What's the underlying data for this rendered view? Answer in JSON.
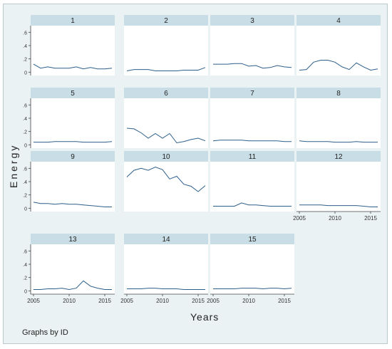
{
  "chart_data": {
    "type": "line",
    "ylabel": "Energy",
    "xlabel": "Years",
    "note": "Graphs by ID",
    "x": [
      2005,
      2006,
      2007,
      2008,
      2009,
      2010,
      2011,
      2012,
      2013,
      2014,
      2015,
      2016
    ],
    "xticks": [
      2005,
      2010,
      2015
    ],
    "yticks": [
      0,
      0.2,
      0.4,
      0.6
    ],
    "ylim": [
      -0.05,
      0.7
    ],
    "grid": false,
    "series": [
      {
        "name": "1",
        "values": [
          0.12,
          0.06,
          0.08,
          0.06,
          0.06,
          0.06,
          0.08,
          0.05,
          0.07,
          0.05,
          0.05,
          0.06
        ]
      },
      {
        "name": "2",
        "values": [
          0.02,
          0.04,
          0.04,
          0.04,
          0.02,
          0.02,
          0.02,
          0.02,
          0.03,
          0.03,
          0.03,
          0.07
        ]
      },
      {
        "name": "3",
        "values": [
          0.12,
          0.12,
          0.12,
          0.13,
          0.13,
          0.09,
          0.1,
          0.06,
          0.07,
          0.1,
          0.08,
          0.07
        ]
      },
      {
        "name": "4",
        "values": [
          0.03,
          0.04,
          0.15,
          0.18,
          0.18,
          0.15,
          0.08,
          0.04,
          0.14,
          0.08,
          0.03,
          0.05
        ]
      },
      {
        "name": "5",
        "values": [
          0.04,
          0.04,
          0.04,
          0.05,
          0.05,
          0.05,
          0.05,
          0.04,
          0.04,
          0.04,
          0.04,
          0.05
        ]
      },
      {
        "name": "6",
        "values": [
          0.25,
          0.24,
          0.18,
          0.1,
          0.17,
          0.1,
          0.17,
          0.03,
          0.05,
          0.08,
          0.1,
          0.06
        ]
      },
      {
        "name": "7",
        "values": [
          0.06,
          0.07,
          0.07,
          0.07,
          0.07,
          0.06,
          0.06,
          0.06,
          0.06,
          0.06,
          0.05,
          0.05
        ]
      },
      {
        "name": "8",
        "values": [
          0.06,
          0.05,
          0.05,
          0.05,
          0.05,
          0.04,
          0.04,
          0.04,
          0.05,
          0.04,
          0.04,
          0.04
        ]
      },
      {
        "name": "9",
        "values": [
          0.09,
          0.07,
          0.07,
          0.06,
          0.07,
          0.06,
          0.06,
          0.05,
          0.04,
          0.03,
          0.02,
          0.02
        ]
      },
      {
        "name": "10",
        "values": [
          0.47,
          0.57,
          0.6,
          0.57,
          0.62,
          0.58,
          0.44,
          0.48,
          0.36,
          0.33,
          0.25,
          0.34
        ]
      },
      {
        "name": "11",
        "values": [
          0.03,
          0.03,
          0.03,
          0.03,
          0.08,
          0.05,
          0.05,
          0.04,
          0.03,
          0.03,
          0.03,
          0.03
        ]
      },
      {
        "name": "12",
        "values": [
          0.05,
          0.05,
          0.05,
          0.05,
          0.04,
          0.04,
          0.04,
          0.04,
          0.04,
          0.03,
          0.02,
          0.02
        ]
      },
      {
        "name": "13",
        "values": [
          0.02,
          0.02,
          0.03,
          0.03,
          0.04,
          0.02,
          0.04,
          0.15,
          0.07,
          0.04,
          0.02,
          0.02
        ]
      },
      {
        "name": "14",
        "values": [
          0.03,
          0.03,
          0.03,
          0.04,
          0.04,
          0.03,
          0.03,
          0.03,
          0.02,
          0.02,
          0.02,
          0.02
        ]
      },
      {
        "name": "15",
        "values": [
          0.03,
          0.03,
          0.03,
          0.03,
          0.04,
          0.04,
          0.04,
          0.03,
          0.04,
          0.04,
          0.03,
          0.04
        ]
      }
    ],
    "colors": {
      "line": "#2e5f8a",
      "panel_header": "#c9dde6",
      "panel_bg": "#ffffff",
      "figure_bg": "#eaf2f3",
      "axis": "#444444"
    }
  }
}
